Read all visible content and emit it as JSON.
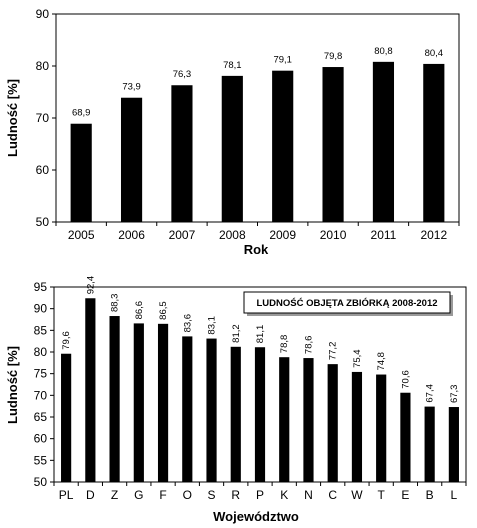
{
  "chart_data": [
    {
      "type": "bar",
      "categories": [
        "2005",
        "2006",
        "2007",
        "2008",
        "2009",
        "2010",
        "2011",
        "2012"
      ],
      "values": [
        68.9,
        73.9,
        76.3,
        78.1,
        79.1,
        79.8,
        80.8,
        80.4
      ],
      "value_labels": [
        "68,9",
        "73,9",
        "76,3",
        "78,1",
        "79,1",
        "79,8",
        "80,8",
        "80,4"
      ],
      "title": "",
      "xlabel": "Rok",
      "ylabel": "Ludność  [%]",
      "ylim": [
        50,
        90
      ],
      "yticks": [
        "50",
        "60",
        "70",
        "80",
        "90"
      ],
      "bar_color": "#000000",
      "grid": false
    },
    {
      "type": "bar",
      "categories": [
        "PL",
        "D",
        "Z",
        "G",
        "F",
        "O",
        "S",
        "R",
        "P",
        "K",
        "N",
        "C",
        "W",
        "T",
        "E",
        "B",
        "L"
      ],
      "values": [
        79.6,
        92.4,
        88.3,
        86.6,
        86.5,
        83.6,
        83.1,
        81.2,
        81.1,
        78.8,
        78.6,
        77.2,
        75.4,
        74.8,
        70.6,
        67.4,
        67.3
      ],
      "value_labels": [
        "79,6",
        "92,4",
        "88,3",
        "86,6",
        "86,5",
        "83,6",
        "83,1",
        "81,2",
        "81,1",
        "78,8",
        "78,6",
        "77,2",
        "75,4",
        "74,8",
        "70,6",
        "67,4",
        "67,3"
      ],
      "title": "LUDNOŚĆ OBJĘTA ZBIÓRKĄ  2008-2012",
      "xlabel": "Województwo",
      "ylabel": "Ludność  [%]",
      "ylim": [
        50,
        95
      ],
      "yticks": [
        "50",
        "55",
        "60",
        "65",
        "70",
        "75",
        "80",
        "85",
        "90",
        "95"
      ],
      "bar_color": "#000000",
      "grid": false
    }
  ]
}
